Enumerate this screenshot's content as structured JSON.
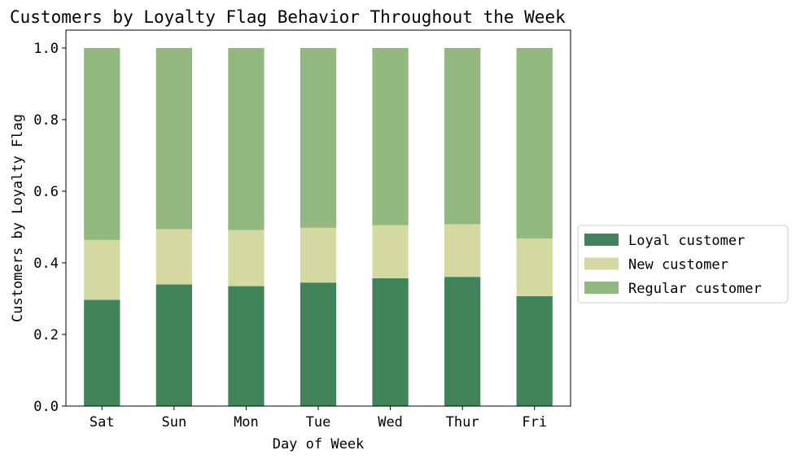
{
  "chart_data": {
    "type": "bar",
    "stacked": true,
    "title": "Customers by Loyalty Flag Behavior Throughout the Week",
    "xlabel": "Day of Week",
    "ylabel": "Customers by Loyalty Flag",
    "categories": [
      "Sat",
      "Sun",
      "Mon",
      "Tue",
      "Wed",
      "Thur",
      "Fri"
    ],
    "ylim": [
      0,
      1.05
    ],
    "yticks": [
      "0.0",
      "0.2",
      "0.4",
      "0.6",
      "0.8",
      "1.0"
    ],
    "series": [
      {
        "name": "Loyal customer",
        "color": "#41845a",
        "values": [
          0.297,
          0.34,
          0.335,
          0.345,
          0.357,
          0.361,
          0.307
        ]
      },
      {
        "name": "New customer",
        "color": "#d3d9a0",
        "values": [
          0.167,
          0.154,
          0.157,
          0.153,
          0.148,
          0.147,
          0.161
        ]
      },
      {
        "name": "Regular customer",
        "color": "#92b87f",
        "values": [
          0.536,
          0.506,
          0.508,
          0.502,
          0.495,
          0.492,
          0.532
        ]
      }
    ],
    "legend_position": "center-right",
    "grid": false
  }
}
